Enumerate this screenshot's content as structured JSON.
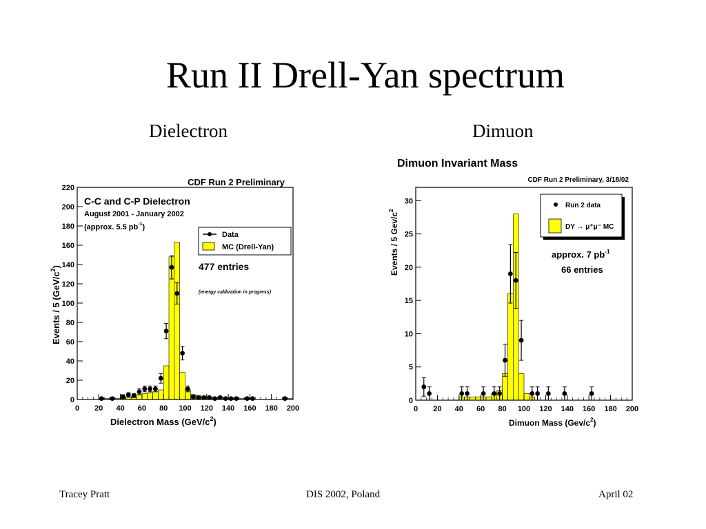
{
  "slide": {
    "title": "Run II Drell-Yan spectrum",
    "left_caption": "Dielectron",
    "right_caption": "Dimuon",
    "footer_left": "Tracey Pratt",
    "footer_center": "DIS 2002, Poland",
    "footer_right": "April 02"
  },
  "colors": {
    "mc_fill": "#ffff00",
    "data_marker": "#000000",
    "background": "#ffffff"
  },
  "chart_data": [
    {
      "type": "bar",
      "header": "CDF Run 2 Preliminary",
      "title_lines": [
        "C-C and C-P Dielectron",
        "August 2001 - January 2002"
      ],
      "lumi_text": "(approx. 5.5 pb",
      "lumi_sup": "-1",
      "lumi_close": ")",
      "entries_text": "477 entries",
      "note": "(energy calibration in progress)",
      "xlabel": "Dielectron Mass (GeV/c",
      "xlabel_sup": "2",
      "xlabel_close": ")",
      "ylabel": "Events / 5 (GeV/c",
      "ylabel_sup": "2",
      "ylabel_close": ")",
      "xlim": [
        0,
        200
      ],
      "ylim": [
        0,
        220
      ],
      "xticks": [
        "0",
        "20",
        "40",
        "60",
        "80",
        "100",
        "120",
        "140",
        "160",
        "180",
        "200"
      ],
      "yticks": [
        "0",
        "20",
        "40",
        "60",
        "80",
        "100",
        "120",
        "140",
        "160",
        "180",
        "200",
        "220"
      ],
      "legend": [
        "Data",
        "MC (Drell-Yan)"
      ],
      "legend_position": "top-right",
      "bin_width": 5,
      "mc_histogram": {
        "bin_starts": [
          20,
          25,
          30,
          35,
          40,
          45,
          50,
          55,
          60,
          65,
          70,
          75,
          80,
          85,
          90,
          95,
          100,
          105,
          110,
          115,
          120,
          125,
          130,
          135,
          140,
          145,
          150,
          155,
          160,
          165,
          170,
          175,
          180,
          185,
          190,
          195
        ],
        "values": [
          1,
          1,
          1,
          1,
          2,
          2,
          3,
          5,
          6,
          7,
          8,
          10,
          35,
          148,
          163,
          28,
          10,
          5,
          4,
          3,
          2,
          2,
          2,
          1,
          1,
          1,
          1,
          0,
          0,
          0,
          0,
          0,
          0,
          0,
          0,
          1
        ]
      },
      "data_points": [
        {
          "x": 22.5,
          "y": 1,
          "err": 1
        },
        {
          "x": 32.5,
          "y": 1,
          "err": 1
        },
        {
          "x": 42.5,
          "y": 3,
          "err": 2
        },
        {
          "x": 47.5,
          "y": 5,
          "err": 2
        },
        {
          "x": 52.5,
          "y": 4,
          "err": 2
        },
        {
          "x": 57.5,
          "y": 8,
          "err": 3
        },
        {
          "x": 62.5,
          "y": 11,
          "err": 3
        },
        {
          "x": 67.5,
          "y": 11,
          "err": 3
        },
        {
          "x": 72.5,
          "y": 11,
          "err": 3
        },
        {
          "x": 77.5,
          "y": 22,
          "err": 5
        },
        {
          "x": 82.5,
          "y": 71,
          "err": 8
        },
        {
          "x": 87.5,
          "y": 137,
          "err": 12
        },
        {
          "x": 92.5,
          "y": 110,
          "err": 11
        },
        {
          "x": 97.5,
          "y": 48,
          "err": 7
        },
        {
          "x": 102.5,
          "y": 11,
          "err": 3
        },
        {
          "x": 107.5,
          "y": 3,
          "err": 2
        },
        {
          "x": 112.5,
          "y": 2,
          "err": 1
        },
        {
          "x": 117.5,
          "y": 2,
          "err": 1
        },
        {
          "x": 122.5,
          "y": 2,
          "err": 1
        },
        {
          "x": 127.5,
          "y": 1,
          "err": 1
        },
        {
          "x": 132.5,
          "y": 2,
          "err": 1
        },
        {
          "x": 137.5,
          "y": 1,
          "err": 1
        },
        {
          "x": 142.5,
          "y": 1,
          "err": 1
        },
        {
          "x": 147.5,
          "y": 1,
          "err": 1
        },
        {
          "x": 157.5,
          "y": 1,
          "err": 1
        },
        {
          "x": 162.5,
          "y": 1,
          "err": 1
        },
        {
          "x": 192.5,
          "y": 1,
          "err": 1
        }
      ]
    },
    {
      "type": "bar",
      "header": "Dimuon Invariant Mass",
      "subheader": "CDF Run 2 Preliminary, 3/18/02",
      "lumi_text": "approx. 7 pb",
      "lumi_sup": "-1",
      "entries_text": "66 entries",
      "xlabel": "Dimuon Mass (Gev/c",
      "xlabel_sup": "2",
      "xlabel_close": ")",
      "ylabel": "Events / 5 Gev/c",
      "ylabel_sup": "2",
      "xlim": [
        0,
        200
      ],
      "ylim": [
        0,
        32
      ],
      "xticks": [
        "0",
        "20",
        "40",
        "60",
        "80",
        "100",
        "120",
        "140",
        "160",
        "180",
        "200"
      ],
      "yticks": [
        "0",
        "5",
        "10",
        "15",
        "20",
        "25",
        "30"
      ],
      "legend": [
        "Run 2 data",
        "DY → μ⁺μ⁻ MC"
      ],
      "legend_position": "top-right",
      "bin_width": 5,
      "mc_histogram": {
        "bin_starts": [
          40,
          45,
          50,
          55,
          60,
          65,
          70,
          75,
          80,
          85,
          90,
          95,
          100,
          105
        ],
        "values": [
          0.5,
          0.5,
          0.5,
          0.5,
          0.5,
          0.5,
          1,
          1.5,
          4,
          16,
          28,
          4,
          1,
          0.5
        ]
      },
      "data_points": [
        {
          "x": 7.5,
          "y": 2,
          "err": 1.4
        },
        {
          "x": 12.5,
          "y": 1,
          "err": 1
        },
        {
          "x": 42.5,
          "y": 1,
          "err": 1
        },
        {
          "x": 47.5,
          "y": 1,
          "err": 1
        },
        {
          "x": 62.5,
          "y": 1,
          "err": 1
        },
        {
          "x": 72.5,
          "y": 1,
          "err": 1
        },
        {
          "x": 77.5,
          "y": 1,
          "err": 1
        },
        {
          "x": 82.5,
          "y": 6,
          "err": 2.4
        },
        {
          "x": 87.5,
          "y": 19,
          "err": 4.4
        },
        {
          "x": 92.5,
          "y": 18,
          "err": 4.2
        },
        {
          "x": 97.5,
          "y": 9,
          "err": 3
        },
        {
          "x": 107.5,
          "y": 1,
          "err": 1
        },
        {
          "x": 112.5,
          "y": 1,
          "err": 1
        },
        {
          "x": 122.5,
          "y": 1,
          "err": 1
        },
        {
          "x": 137.5,
          "y": 1,
          "err": 1
        },
        {
          "x": 162.5,
          "y": 1,
          "err": 1
        }
      ]
    }
  ]
}
